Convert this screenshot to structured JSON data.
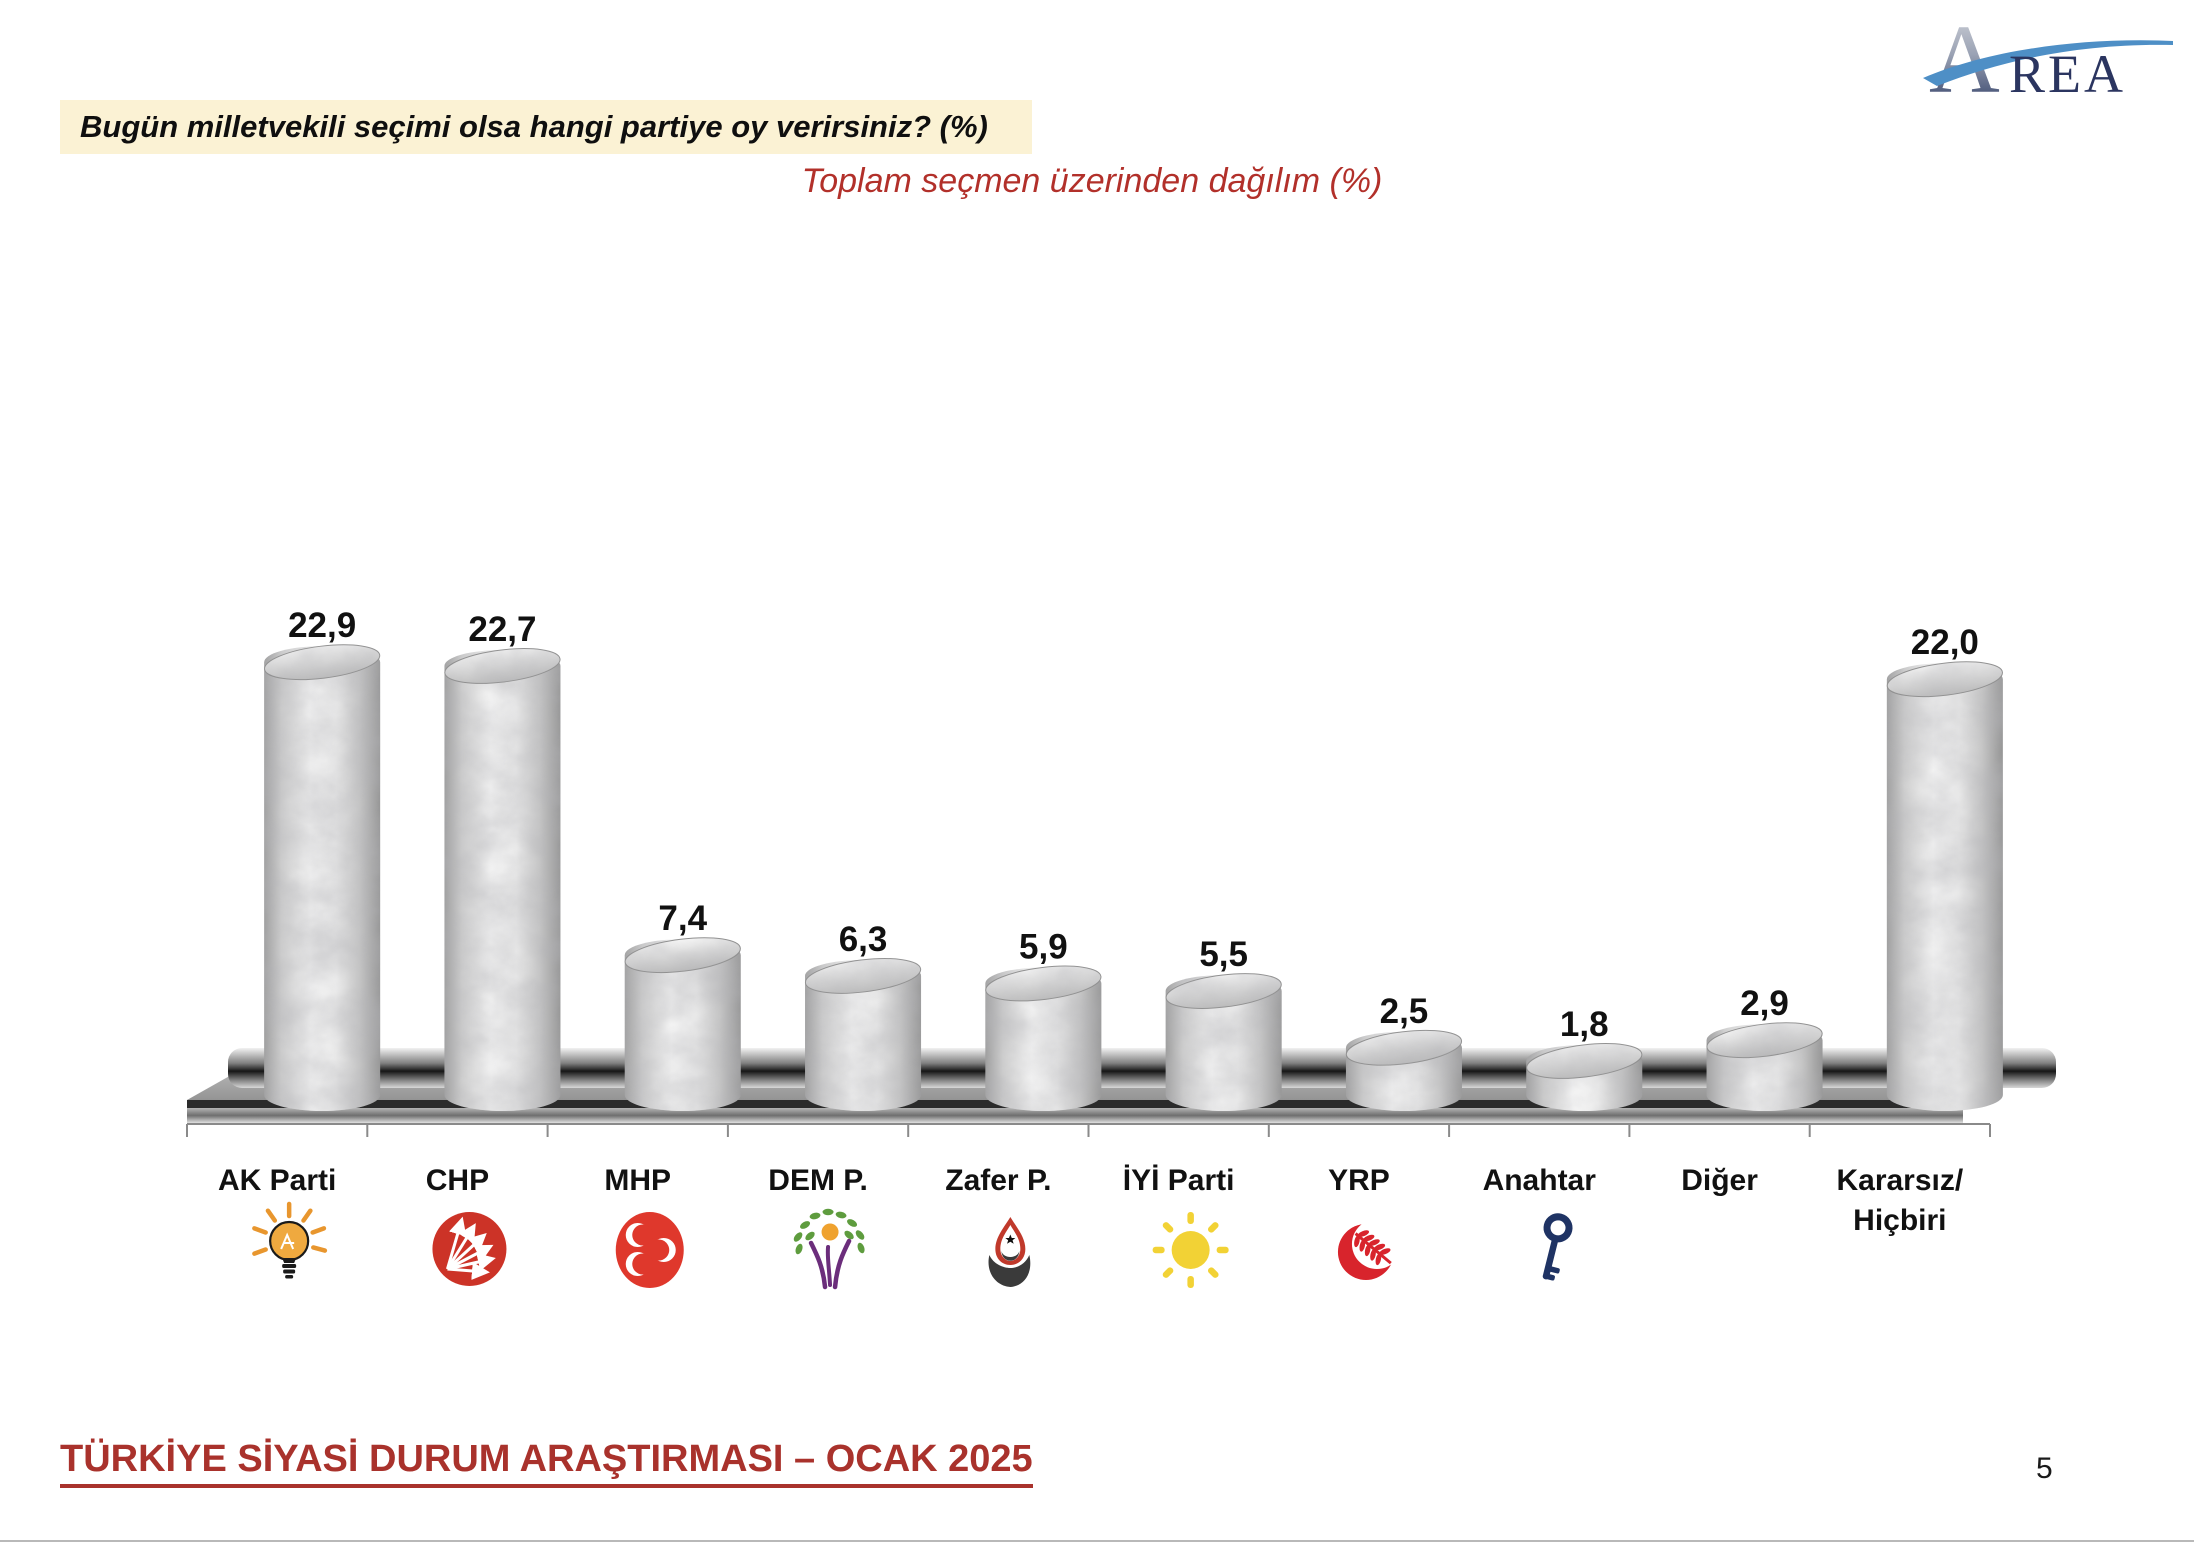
{
  "header": {
    "question": "Bugün milletvekili seçimi olsa hangi partiye oy verirsiniz? (%)",
    "subtitle": "Toplam seçmen üzerinden dağılım (%)",
    "banner_bg": "#FBF2D4",
    "subtitle_color": "#B2302A"
  },
  "brand": {
    "logo_a": "A",
    "logo_rest": "REA",
    "navy": "#2B3560",
    "swoosh_blue": "#4E8FC6"
  },
  "footer": {
    "title": "TÜRKİYE SİYASİ DURUM ARAŞTIRMASI – OCAK 2025",
    "color": "#A9322C"
  },
  "page": {
    "number": "5"
  },
  "chart_data": {
    "type": "bar",
    "style": "3d-marble-cylinders",
    "unit": "%",
    "title": "Bugün milletvekili seçimi olsa hangi partiye oy verirsiniz? (%)",
    "subtitle": "Toplam seçmen üzerinden dağılım (%)",
    "categories": [
      "AK Parti",
      "CHP",
      "MHP",
      "DEM P.",
      "Zafer P.",
      "İYİ Parti",
      "YRP",
      "Anahtar",
      "Diğer",
      "Kararsız/\nHiçbiri"
    ],
    "values": [
      22.9,
      22.7,
      7.4,
      6.3,
      5.9,
      5.5,
      2.5,
      1.8,
      2.9,
      22.0
    ],
    "value_labels": [
      "22,9",
      "22,7",
      "7,4",
      "6,3",
      "5,9",
      "5,5",
      "2,5",
      "1,8",
      "2,9",
      "22,0"
    ],
    "logos": [
      "akp-bulb",
      "chp-sun-arrows",
      "mhp-crescents",
      "dem-tree",
      "zafer-flame",
      "iyi-sun",
      "yrp-crescent",
      "anahtar-key",
      null,
      null
    ],
    "logo_colors": {
      "akp-bulb": {
        "main": "#EFA93F",
        "rays": "#E8962E",
        "accent": "#1A1A1A"
      },
      "chp-sun-arrows": {
        "main": "#CC3327",
        "accent": "#FFFFFF"
      },
      "mhp-crescents": {
        "main": "#DF382C",
        "accent": "#FFFFFF"
      },
      "dem-tree": {
        "main": "#6B2D7B",
        "leaves": "#5E9C3E",
        "sun": "#EFA22F"
      },
      "zafer-flame": {
        "main": "#3A3A3A",
        "flame": "#C0392B",
        "accent": "#FFFFFF"
      },
      "iyi-sun": {
        "main": "#F2D235"
      },
      "yrp-crescent": {
        "main": "#D8242C",
        "accent": "#FFFFFF"
      },
      "anahtar-key": {
        "main": "#1F3364"
      }
    },
    "ylim": [
      0,
      25
    ],
    "grid": false,
    "legend": false,
    "bar_color": "marble-gray",
    "platform_color": "metallic-gray"
  }
}
